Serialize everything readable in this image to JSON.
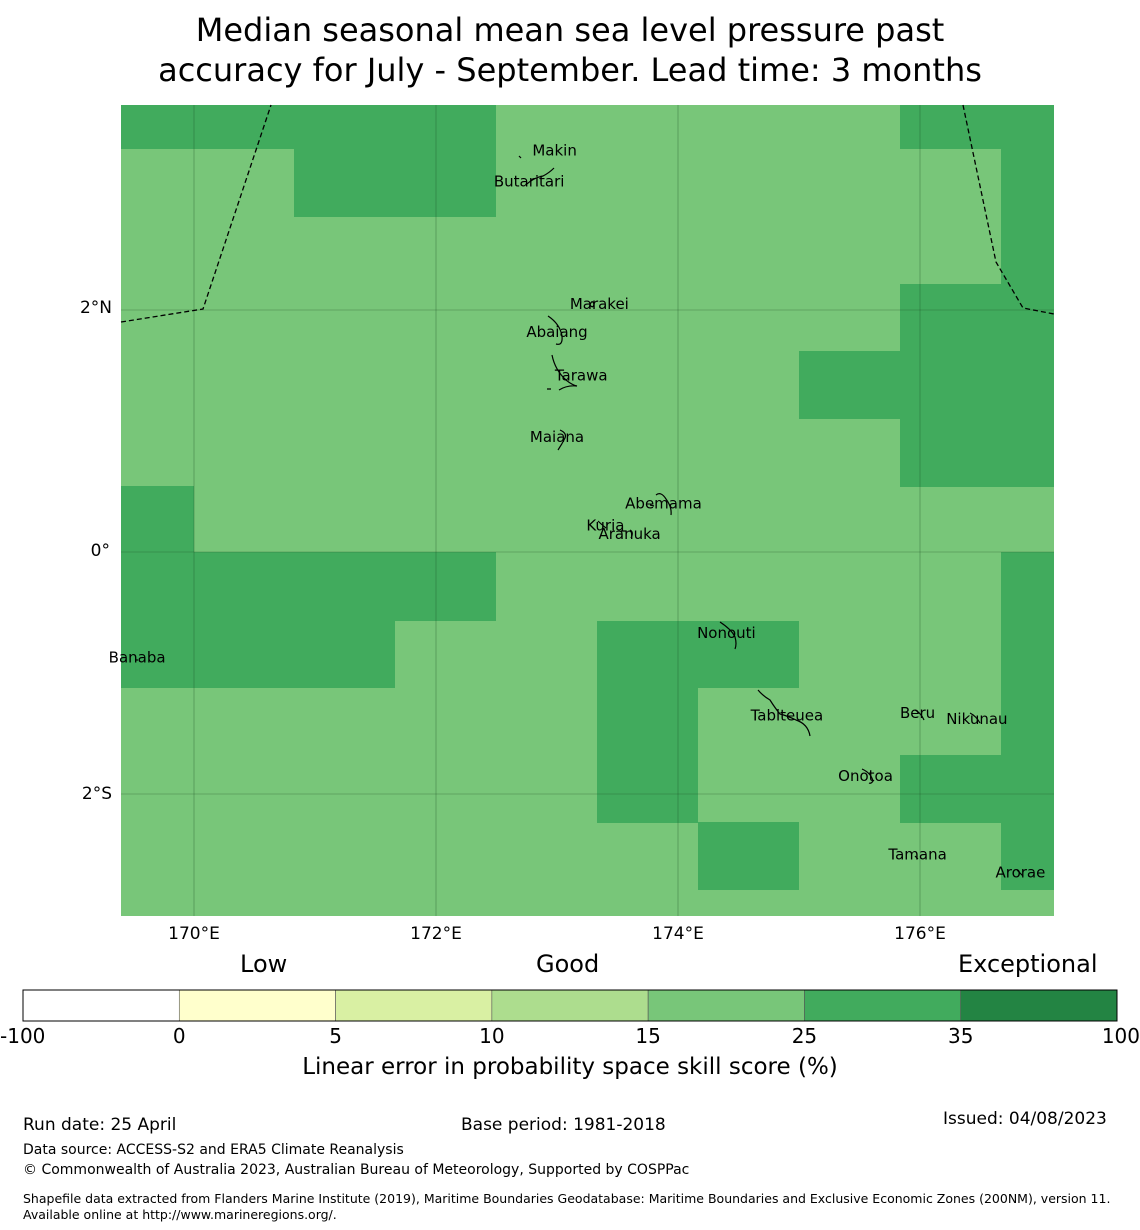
{
  "title": {
    "line1": "Median seasonal mean sea level pressure past",
    "line2": "accuracy for July - September. Lead time: 3 months"
  },
  "map": {
    "lat_labels": [
      "2°N",
      "0°",
      "2°S"
    ],
    "lon_labels": [
      "170°E",
      "172°E",
      "174°E",
      "176°E"
    ],
    "extent": {
      "lon": [
        169.4,
        177.1
      ],
      "lat": [
        -3.0,
        3.6
      ]
    },
    "colors": {
      "good": "#78c679",
      "very_good": "#41ab5d",
      "border": "#000000"
    },
    "islands": [
      {
        "name": "Makin",
        "lon": 172.98,
        "lat": 3.32
      },
      {
        "name": "Butaritari",
        "lon": 172.77,
        "lat": 3.06
      },
      {
        "name": "Marakei",
        "lon": 173.35,
        "lat": 2.05
      },
      {
        "name": "Abaiang",
        "lon": 173.0,
        "lat": 1.82
      },
      {
        "name": "Tarawa",
        "lon": 173.2,
        "lat": 1.46
      },
      {
        "name": "Maiana",
        "lon": 173.0,
        "lat": 0.95
      },
      {
        "name": "Abemama",
        "lon": 173.88,
        "lat": 0.4
      },
      {
        "name": "Kuria",
        "lon": 173.4,
        "lat": 0.22
      },
      {
        "name": "Aranuka",
        "lon": 173.6,
        "lat": 0.15
      },
      {
        "name": "Nonouti",
        "lon": 174.4,
        "lat": -0.67
      },
      {
        "name": "Banaba",
        "lon": 169.53,
        "lat": -0.87
      },
      {
        "name": "Tabiteuea",
        "lon": 174.9,
        "lat": -1.35
      },
      {
        "name": "Beru",
        "lon": 175.98,
        "lat": -1.33
      },
      {
        "name": "Nikunau",
        "lon": 176.47,
        "lat": -1.38
      },
      {
        "name": "Onotoa",
        "lon": 175.55,
        "lat": -1.85
      },
      {
        "name": "Tamana",
        "lon": 175.98,
        "lat": -2.5
      },
      {
        "name": "Arorae",
        "lon": 176.83,
        "lat": -2.65
      }
    ]
  },
  "legend": {
    "categories": [
      "Low",
      "Good",
      "Exceptional"
    ],
    "ticks": [
      "-100",
      "0",
      "5",
      "10",
      "15",
      "25",
      "35",
      "100"
    ],
    "colors": [
      "#ffffff",
      "#ffffcc",
      "#d9f0a3",
      "#addd8e",
      "#78c679",
      "#41ab5d",
      "#238443"
    ],
    "label": "Linear error in probability space skill score (%)"
  },
  "footer": {
    "run_date": "Run date: 25 April",
    "base_period": "Base period: 1981-2018",
    "issued": "Issued: 04/08/2023",
    "data_source": "Data source: ACCESS-S2 and ERA5 Climate Reanalysis",
    "copyright": "© Commonwealth of Australia 2023, Australian Bureau of Meteorology, Supported by COSPPac",
    "shapefile": "Shapefile data extracted from Flanders Marine Institute (2019), Maritime Boundaries Geodatabase: Maritime Boundaries and Exclusive Economic Zones (200NM), version 11. Available online at http://www.marineregions.org/."
  }
}
